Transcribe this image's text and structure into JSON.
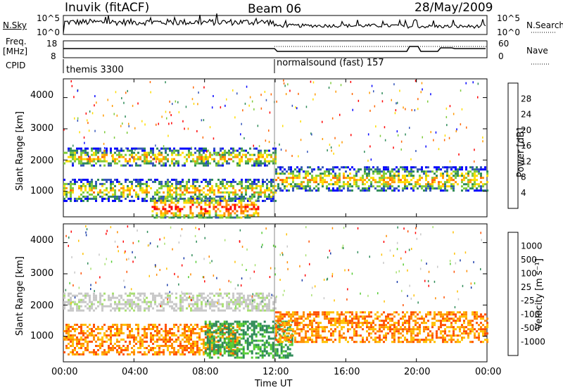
{
  "header": {
    "station": "Inuvik (fitACF)",
    "beam": "Beam 06",
    "date": "28/May/2009"
  },
  "top_panel": {
    "left_label": "N.Sky",
    "right_label": "N.Search",
    "left_ticks": [
      "10^5",
      "10^0"
    ],
    "right_ticks": [
      "10^5",
      "10^0"
    ]
  },
  "freq_panel": {
    "left_label_1": "Freq.",
    "left_label_2": "[MHz]",
    "right_label": "Nave",
    "left_ticks": [
      "18",
      "8"
    ],
    "right_ticks": [
      "60",
      "0"
    ]
  },
  "cpid_panel": {
    "label": "CPID",
    "segments": [
      "themis 3300",
      "normalsound (fast) 157"
    ]
  },
  "power_panel": {
    "ylabel": "Slant Range [km]",
    "cbar_label": "Power [dB]",
    "cbar_ticks": [
      "28",
      "24",
      "20",
      "16",
      "12",
      "8",
      "4"
    ],
    "cbar_colors": [
      "#ff0000",
      "#ff6600",
      "#ff9900",
      "#ffdd00",
      "#7ecb3a",
      "#2e8b57",
      "#3355bb",
      "#0000ff"
    ]
  },
  "velocity_panel": {
    "ylabel": "Slant Range [km]",
    "cbar_label": "Velocity [m s⁻¹]",
    "cbar_ticks": [
      "1000",
      "500",
      "100",
      "25",
      "-25",
      "-100",
      "-500",
      "-1000"
    ],
    "cbar_colors": [
      "#1a3caa",
      "#2e8b57",
      "#55cc33",
      "#a8e070",
      "#c8c8c8",
      "#ffc000",
      "#ff8c00",
      "#ff5000",
      "#ff0000"
    ]
  },
  "x_axis": {
    "label": "Time UT",
    "ticks": [
      "00:00",
      "04:00",
      "08:00",
      "12:00",
      "16:00",
      "20:00",
      "00:00"
    ]
  },
  "y_axis": {
    "ticks": [
      "4000",
      "3000",
      "2000",
      "1000"
    ]
  },
  "chart_data": [
    {
      "type": "heatmap",
      "title": "Power",
      "xlabel": "Time UT",
      "ylabel": "Slant Range [km]",
      "x_range": [
        "00:00",
        "24:00"
      ],
      "y_range": [
        180,
        4600
      ],
      "colorbar": {
        "label": "Power [dB]",
        "ticks": [
          28,
          24,
          20,
          16,
          12,
          8,
          4
        ]
      },
      "echo_bands": [
        {
          "t_start": 0,
          "t_end": 12,
          "range_low": 1800,
          "range_high": 2400,
          "power_db": 20
        },
        {
          "t_start": 0,
          "t_end": 12,
          "range_low": 700,
          "range_high": 1400,
          "power_db": 22
        },
        {
          "t_start": 5,
          "t_end": 11,
          "range_low": 180,
          "range_high": 800,
          "power_db": 28
        },
        {
          "t_start": 12,
          "t_end": 24,
          "range_low": 1000,
          "range_high": 1800,
          "power_db": 14
        }
      ]
    },
    {
      "type": "heatmap",
      "title": "Velocity",
      "xlabel": "Time UT",
      "ylabel": "Slant Range [km]",
      "x_range": [
        "00:00",
        "24:00"
      ],
      "y_range": [
        180,
        4600
      ],
      "colorbar": {
        "label": "Velocity [m s⁻¹]",
        "ticks": [
          1000,
          500,
          100,
          25,
          -25,
          -100,
          -500,
          -1000
        ]
      },
      "echo_bands": [
        {
          "t_start": 0,
          "t_end": 12,
          "range_low": 1800,
          "range_high": 2400,
          "velocity": 0
        },
        {
          "t_start": 0,
          "t_end": 10,
          "range_low": 400,
          "range_high": 1400,
          "velocity": -300
        },
        {
          "t_start": 8,
          "t_end": 13,
          "range_low": 300,
          "range_high": 1500,
          "velocity": 200
        },
        {
          "t_start": 12,
          "t_end": 24,
          "range_low": 800,
          "range_high": 1800,
          "velocity": -100
        }
      ]
    }
  ]
}
